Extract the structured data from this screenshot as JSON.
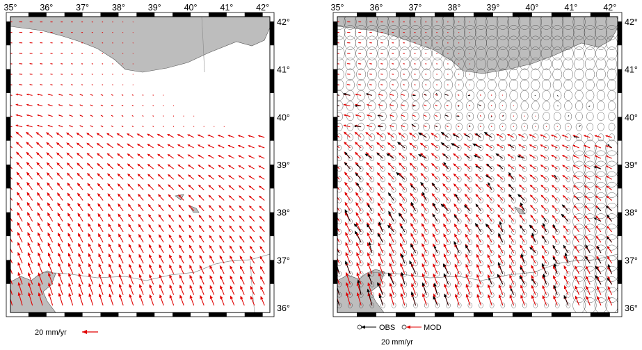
{
  "maps": [
    {
      "name": "left-velocity-map",
      "lon_range": [
        35,
        42.2
      ],
      "lat_range": [
        35.9,
        42.1
      ],
      "lon_ticks": [
        "35°",
        "36°",
        "37°",
        "38°",
        "39°",
        "40°",
        "41°",
        "42°"
      ],
      "lat_ticks": [
        "36°",
        "37°",
        "38°",
        "39°",
        "40°",
        "41°",
        "42°"
      ],
      "lat_label_side": "right",
      "show_obs": false,
      "show_ellipses": false
    },
    {
      "name": "right-velocity-map",
      "lon_range": [
        35,
        42.2
      ],
      "lat_range": [
        35.9,
        42.1
      ],
      "lon_ticks": [
        "35°",
        "36°",
        "37°",
        "38°",
        "39°",
        "40°",
        "41°",
        "42°"
      ],
      "lat_ticks": [
        "36°",
        "37°",
        "38°",
        "39°",
        "40°",
        "41°",
        "42°"
      ],
      "lat_label_side": "right",
      "show_obs": true,
      "show_ellipses": true
    }
  ],
  "legend": {
    "left_scale": "20 mm/yr",
    "obs_label": "OBS",
    "mod_label": "MOD",
    "right_scale": "20 mm/yr"
  },
  "colors": {
    "land": "#bdbdbd",
    "model_arrow": "#e00000",
    "obs_arrow": "#000000",
    "frame": "#000000"
  }
}
